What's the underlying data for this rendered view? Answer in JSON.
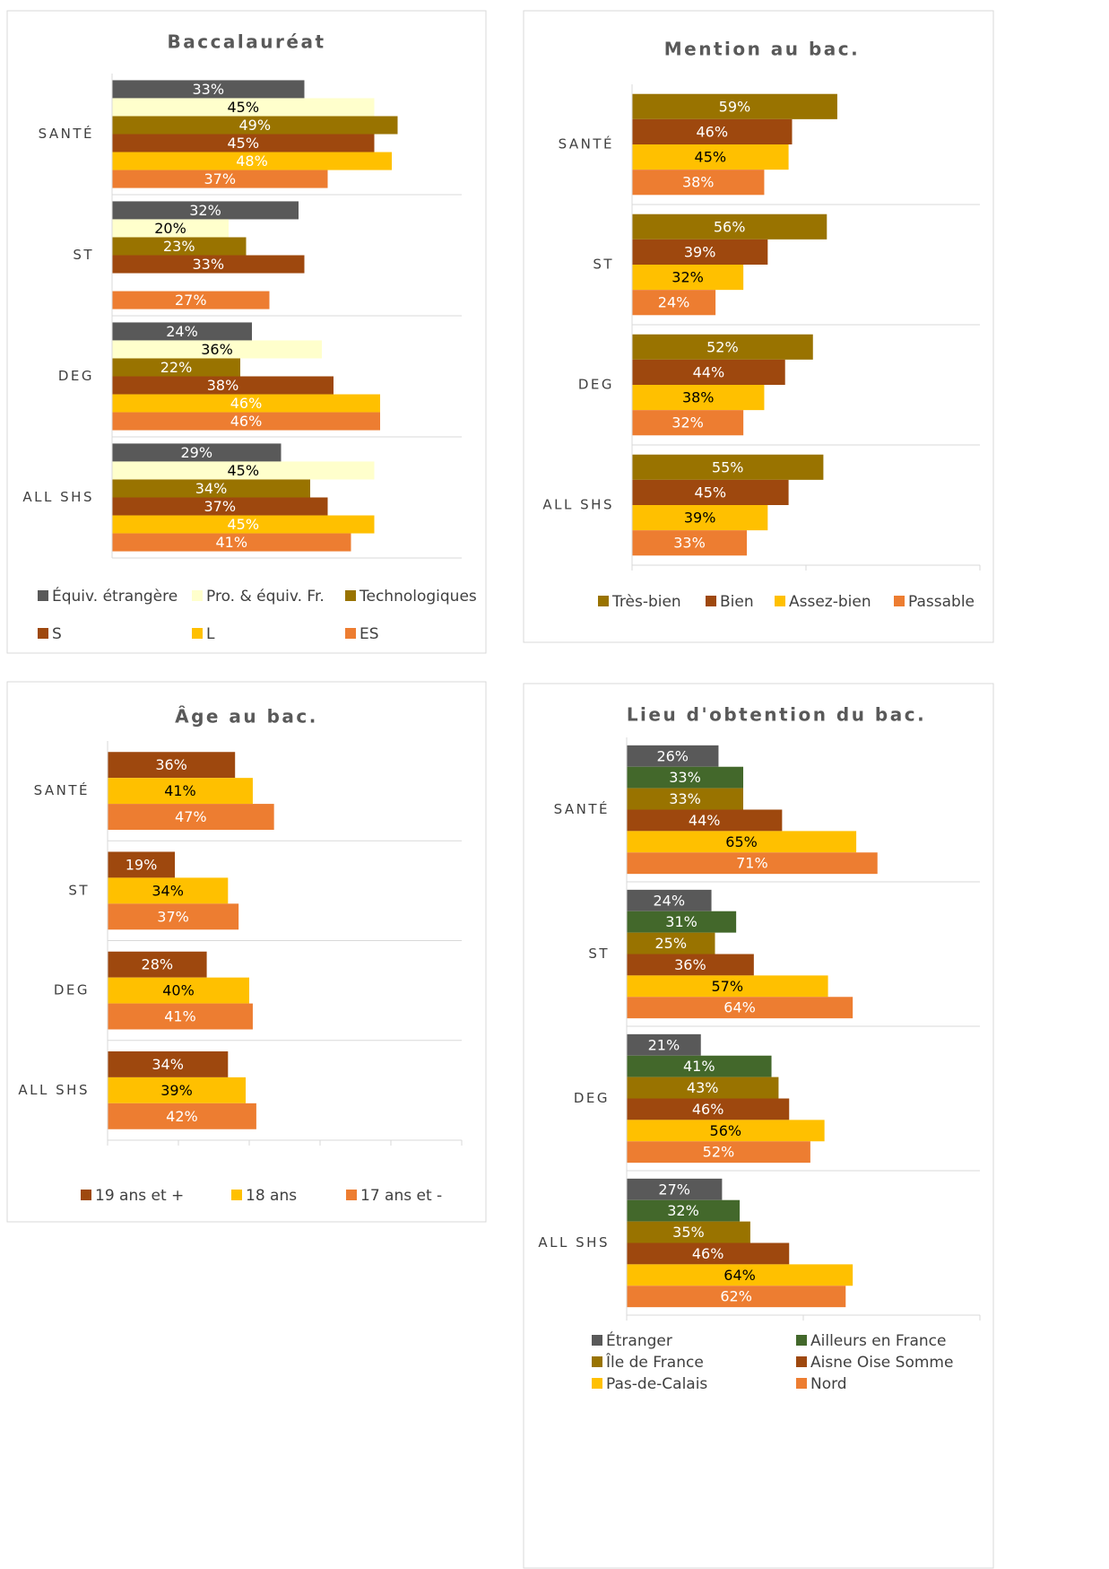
{
  "chart_data": [
    {
      "type": "bar",
      "orientation": "horizontal",
      "title": "Baccalauréat",
      "categories": [
        "SANTÉ",
        "ST",
        "DEG",
        "ALL SHS"
      ],
      "xlim": [
        0,
        60
      ],
      "series": [
        {
          "name": "Équiv. étrangère",
          "color": "#595959",
          "label_color": "#ffffff",
          "values": [
            33,
            32,
            24,
            29
          ],
          "value_labels": [
            "33%",
            "32%",
            "24%",
            "29%"
          ]
        },
        {
          "name": "Pro. & équiv. Fr.",
          "color": "#ffffcc",
          "label_color": "#000000",
          "values": [
            45,
            20,
            36,
            45
          ],
          "value_labels": [
            "45%",
            "20%",
            "36%",
            "45%"
          ]
        },
        {
          "name": "Technologiques",
          "color": "#997300",
          "label_color": "#ffffff",
          "values": [
            49,
            23,
            22,
            34
          ],
          "value_labels": [
            "49%",
            "23%",
            "22%",
            "34%"
          ]
        },
        {
          "name": "S",
          "color": "#9e480e",
          "label_color": "#ffffff",
          "values": [
            45,
            33,
            38,
            37
          ],
          "value_labels": [
            "45%",
            "33%",
            "38%",
            "37%"
          ]
        },
        {
          "name": "L",
          "color": "#ffc000",
          "label_color": "#ffffff",
          "values": [
            48,
            null,
            46,
            45
          ],
          "value_labels": [
            "48%",
            null,
            "46%",
            "45%"
          ]
        },
        {
          "name": "ES",
          "color": "#ed7d31",
          "label_color": "#ffffff",
          "values": [
            37,
            27,
            46,
            41
          ],
          "value_labels": [
            "37%",
            "27%",
            "46%",
            "41%"
          ]
        }
      ]
    },
    {
      "type": "bar",
      "orientation": "horizontal",
      "title": "Mention au bac.",
      "categories": [
        "SANTÉ",
        "ST",
        "DEG",
        "ALL SHS"
      ],
      "xlim": [
        0,
        100
      ],
      "series": [
        {
          "name": "Très-bien",
          "color": "#997300",
          "label_color": "#ffffff",
          "values": [
            59,
            56,
            52,
            55
          ],
          "value_labels": [
            "59%",
            "56%",
            "52%",
            "55%"
          ]
        },
        {
          "name": "Bien",
          "color": "#9e480e",
          "label_color": "#ffffff",
          "values": [
            46,
            39,
            44,
            45
          ],
          "value_labels": [
            "46%",
            "39%",
            "44%",
            "45%"
          ]
        },
        {
          "name": "Assez-bien",
          "color": "#ffc000",
          "label_color": "#000000",
          "values": [
            45,
            32,
            38,
            39
          ],
          "value_labels": [
            "45%",
            "32%",
            "38%",
            "39%"
          ]
        },
        {
          "name": "Passable",
          "color": "#ed7d31",
          "label_color": "#ffffff",
          "values": [
            38,
            24,
            32,
            33
          ],
          "value_labels": [
            "38%",
            "24%",
            "32%",
            "33%"
          ]
        }
      ]
    },
    {
      "type": "bar",
      "orientation": "horizontal",
      "title": "Âge au bac.",
      "categories": [
        "SANTÉ",
        "ST",
        "DEG",
        "ALL SHS"
      ],
      "xlim": [
        0,
        100
      ],
      "series": [
        {
          "name": "19 ans et +",
          "color": "#9e480e",
          "label_color": "#ffffff",
          "values": [
            36,
            19,
            28,
            34
          ],
          "value_labels": [
            "36%",
            "19%",
            "28%",
            "34%"
          ]
        },
        {
          "name": "18 ans",
          "color": "#ffc000",
          "label_color": "#000000",
          "values": [
            41,
            34,
            40,
            39
          ],
          "value_labels": [
            "41%",
            "34%",
            "40%",
            "39%"
          ]
        },
        {
          "name": "17 ans et -",
          "color": "#ed7d31",
          "label_color": "#ffffff",
          "values": [
            47,
            37,
            41,
            42
          ],
          "value_labels": [
            "47%",
            "37%",
            "41%",
            "42%"
          ]
        }
      ]
    },
    {
      "type": "bar",
      "orientation": "horizontal",
      "title": "Lieu d'obtention du bac.",
      "categories": [
        "SANTÉ",
        "ST",
        "DEG",
        "ALL SHS"
      ],
      "xlim": [
        0,
        100
      ],
      "series": [
        {
          "name": "Étranger",
          "color": "#595959",
          "label_color": "#ffffff",
          "values": [
            26,
            24,
            21,
            27
          ],
          "value_labels": [
            "26%",
            "24%",
            "21%",
            "27%"
          ]
        },
        {
          "name": "Ailleurs en France",
          "color": "#43682b",
          "label_color": "#ffffff",
          "values": [
            33,
            31,
            41,
            32
          ],
          "value_labels": [
            "33%",
            "31%",
            "41%",
            "32%"
          ]
        },
        {
          "name": "Île de France",
          "color": "#997300",
          "label_color": "#ffffff",
          "values": [
            33,
            25,
            43,
            35
          ],
          "value_labels": [
            "33%",
            "25%",
            "43%",
            "35%"
          ]
        },
        {
          "name": "Aisne Oise Somme",
          "color": "#9e480e",
          "label_color": "#ffffff",
          "values": [
            44,
            36,
            46,
            46
          ],
          "value_labels": [
            "44%",
            "36%",
            "46%",
            "46%"
          ]
        },
        {
          "name": "Pas-de-Calais",
          "color": "#ffc000",
          "label_color": "#000000",
          "values": [
            65,
            57,
            56,
            64
          ],
          "value_labels": [
            "65%",
            "57%",
            "56%",
            "64%"
          ]
        },
        {
          "name": "Nord",
          "color": "#ed7d31",
          "label_color": "#ffffff",
          "values": [
            71,
            64,
            52,
            62
          ],
          "value_labels": [
            "71%",
            "64%",
            "52%",
            "62%"
          ]
        }
      ]
    }
  ]
}
